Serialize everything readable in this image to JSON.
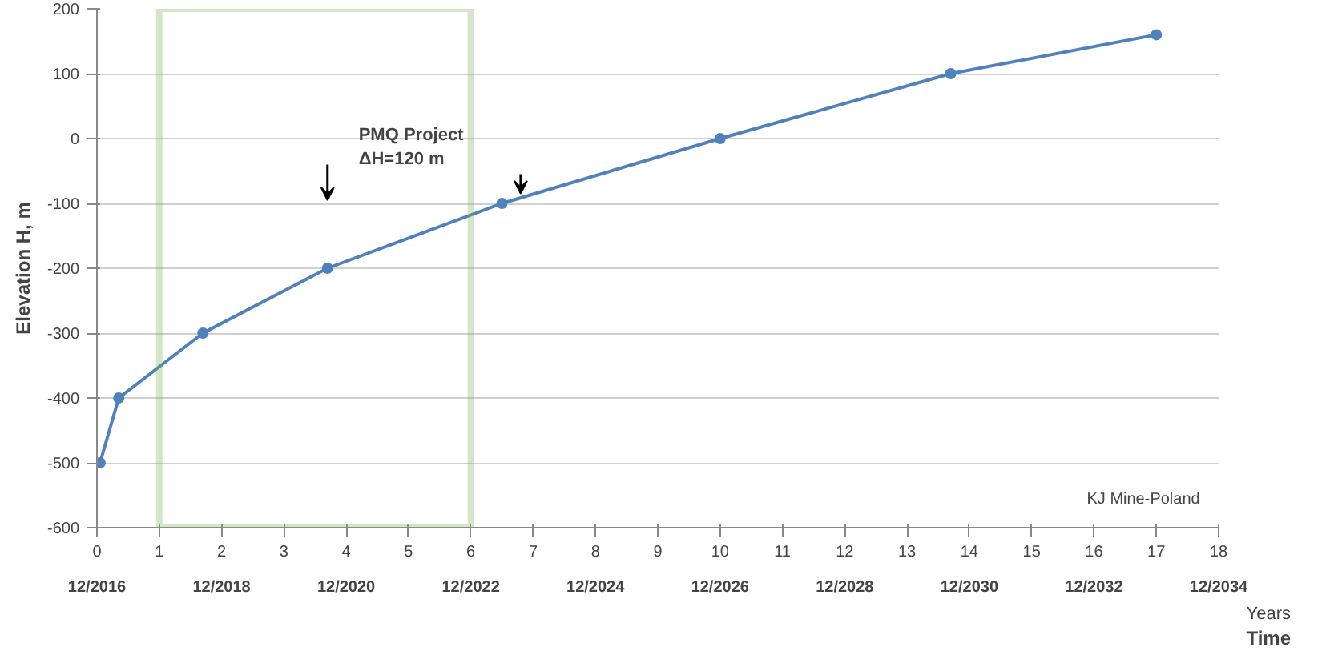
{
  "chart_data": {
    "type": "line",
    "ylabel": "Elevation H, m",
    "xlabel": "Years",
    "x2label": "Time",
    "x": [
      0.05,
      0.35,
      1.7,
      3.7,
      6.5,
      10,
      13.7,
      17
    ],
    "series": [
      {
        "color": "#4f81bd",
        "values": [
          -500,
          -400,
          -300,
          -200,
          -100,
          0,
          100,
          160
        ]
      }
    ],
    "xlim": [
      0,
      18
    ],
    "xticks": [
      0,
      1,
      2,
      3,
      4,
      5,
      6,
      7,
      8,
      9,
      10,
      11,
      12,
      13,
      14,
      15,
      16,
      17,
      18
    ],
    "x2lim": [
      "2016-12",
      "2034-12"
    ],
    "x2ticks": [
      {
        "value": "2016-12",
        "label": "12/2016"
      },
      {
        "value": "2018-12",
        "label": "12/2018"
      },
      {
        "value": "2020-12",
        "label": "12/2020"
      },
      {
        "value": "2022-12",
        "label": "12/2022"
      },
      {
        "value": "2024-12",
        "label": "12/2024"
      },
      {
        "value": "2026-12",
        "label": "12/2026"
      },
      {
        "value": "2028-12",
        "label": "12/2028"
      },
      {
        "value": "2030-12",
        "label": "12/2030"
      },
      {
        "value": "2032-12",
        "label": "12/2032"
      },
      {
        "value": "2034-12",
        "label": "12/2034"
      }
    ],
    "ylim": [
      -600,
      200
    ],
    "yticks": [
      -600,
      -500,
      -400,
      -300,
      -200,
      -100,
      0,
      100,
      200
    ],
    "grid": "y",
    "marker": "circle",
    "line_style": "solid",
    "annotations": [
      "PMQ Project\nΔH=120 m",
      "KJ Mine-Poland"
    ]
  }
}
